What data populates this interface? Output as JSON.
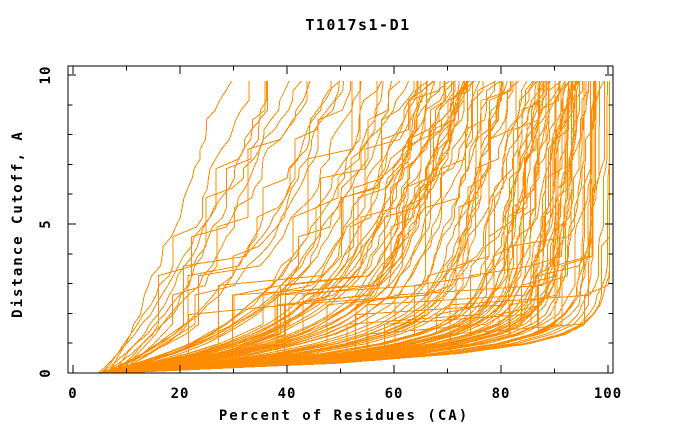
{
  "window": {
    "background": "#ffffff"
  },
  "chart_data": {
    "type": "line",
    "title": "T1017s1-D1",
    "xlabel": "Percent of Residues (CA)",
    "ylabel": "Distance Cutoff, A",
    "xlim": [
      0,
      100
    ],
    "ylim": [
      0,
      10
    ],
    "x_ticks_major": [
      0,
      20,
      40,
      60,
      80,
      100
    ],
    "x_ticks_minor": [
      10,
      30,
      50,
      70,
      90
    ],
    "y_ticks_major": [
      0,
      5,
      10
    ],
    "y_ticks_minor": [
      1,
      2,
      3,
      4,
      6,
      7,
      8,
      9
    ],
    "y_tick_labels_rotated": true,
    "grid": false,
    "legend": "none",
    "frame": "closed box, inward ticks mirrored on all four sides",
    "axis_color": "#000000",
    "series": {
      "name": "per-model distance-cutoff curves",
      "description": "dense bundle of overlapping monotone curves, one per structure model; exact per-curve values not resolvable in source pixels, regenerated procedurally from envelope",
      "count": 130,
      "seed": 7,
      "color": "#FF8C00",
      "y_top": 9.8,
      "x_start_range": [
        4.5,
        8.5
      ],
      "x_end_range": [
        26,
        100
      ]
    }
  }
}
